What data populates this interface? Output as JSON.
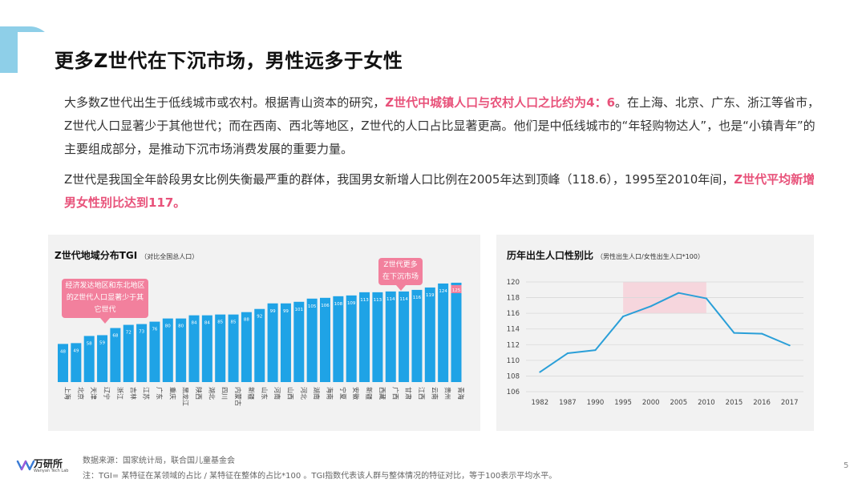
{
  "title": "更多Z世代在下沉市场，男性远多于女性",
  "para1": {
    "a": "大多数Z世代出生于低线城市或农村。根据青山资本的研究，",
    "hl": "Z世代中城镇人口与农村人口之比约为4：6",
    "b": "。在上海、北京、广东、浙江等省市，Z世代人口显著少于其他世代；而在西南、西北等地区，Z世代的人口占比显著更高。他们是中低线城市的“年轻购物达人”，也是“小镇青年”的主要组成部分，是推动下沉市场消费发展的重要力量。"
  },
  "para2": {
    "a": "Z世代是我国全年龄段男女比例失衡最严重的群体，我国男女新增人口比例在2005年达到顶峰（118.6），1995至2010年间，",
    "hl": "Z世代平均新增男女性别比达到117。"
  },
  "left_chart": {
    "title": "Z世代地域分布TGI",
    "subtitle": "（对比全国总人口）",
    "callout_left": "经济发达地区和东北地区的Z世代人口显著少于其它世代",
    "callout_right": "Z世代更多在下沉市场",
    "bar_color": "#1fa3e6",
    "highlight_color": "#f2809d"
  },
  "right_chart": {
    "title": "历年出生人口性别比",
    "subtitle": "（男性出生人口/女性出生人口*100）",
    "line_color": "#2a9fd8",
    "highlight_band": [
      1995,
      2010
    ],
    "band_color": "#f6d6dd"
  },
  "chart_data": [
    {
      "type": "bar",
      "categories": [
        "上海",
        "北京",
        "天津",
        "辽宁",
        "浙江",
        "吉林",
        "江苏",
        "广东",
        "重庆",
        "黑龙江",
        "陕西",
        "湖北",
        "四川",
        "内蒙古",
        "新疆",
        "山东",
        "河南",
        "山西",
        "河北",
        "湖南",
        "海南",
        "宁夏",
        "安徽",
        "新疆",
        "西藏",
        "广西",
        "甘肃",
        "江西",
        "云南",
        "贵州",
        "青海"
      ],
      "values": [
        48,
        49,
        58,
        59,
        68,
        72,
        73,
        76,
        80,
        80,
        84,
        84,
        85,
        85,
        88,
        92,
        99,
        99,
        101,
        105,
        106,
        108,
        109,
        113,
        113,
        114,
        114,
        116,
        119,
        124,
        125
      ],
      "ylim": [
        0,
        130
      ]
    },
    {
      "type": "line",
      "x": [
        "1982",
        "1987",
        "1990",
        "1995",
        "2000",
        "2005",
        "2010",
        "2015",
        "2016",
        "2017"
      ],
      "values": [
        108.5,
        110.9,
        111.3,
        115.6,
        116.9,
        118.6,
        117.9,
        113.5,
        113.4,
        111.9
      ],
      "ylim": [
        106,
        120
      ],
      "yticks": [
        "106",
        "108",
        "110",
        "112",
        "114",
        "116",
        "118",
        "120"
      ],
      "grid": true
    }
  ],
  "footer": {
    "logo": "万研所",
    "logo_sub": "Wanyan Tech Lab",
    "source": "数据来源：国家统计局，联合国儿童基金会",
    "note": "注：TGI= 某特征在某领域的占比 / 某特征在整体的占比*100 。TGI指数代表该人群与整体情况的特征对比，等于100表示平均水平。",
    "page": "5"
  }
}
